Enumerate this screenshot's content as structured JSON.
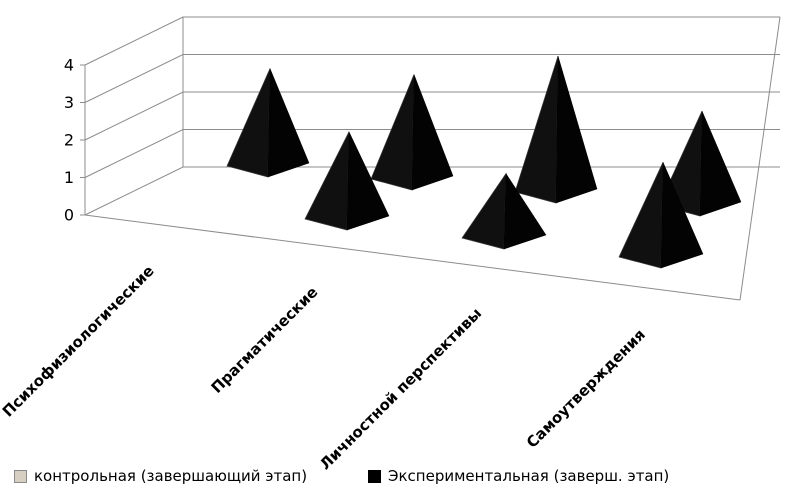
{
  "chart": {
    "background": "#ffffff",
    "axis_color": "#8c8c8c",
    "text_color": "#000000"
  },
  "chart_data": {
    "type": "bar",
    "shape": "pyramid",
    "projection": "3d",
    "categories": [
      "Психофизиологические",
      "Прагматические",
      "Личностной перспективы",
      "Самоутверждения"
    ],
    "series": [
      {
        "name": "контрольная (завершающий этап)",
        "legend_swatch": "#d7d0c2",
        "legend_swatch_border": "#8a8a8a",
        "pyramid_color": "#0a0a0a",
        "values": [
          0,
          2.4,
          1.8,
          2.6
        ]
      },
      {
        "name": "Экспериментальная (заверш. этап)",
        "legend_swatch": "#000000",
        "legend_swatch_border": "#000000",
        "pyramid_color": "#0a0a0a",
        "values": [
          2.9,
          3.1,
          4.0,
          2.8
        ]
      }
    ],
    "ylim": [
      0,
      4
    ],
    "yticks": [
      0,
      1,
      2,
      3,
      4
    ],
    "grid": true,
    "legend_position": "bottom"
  }
}
